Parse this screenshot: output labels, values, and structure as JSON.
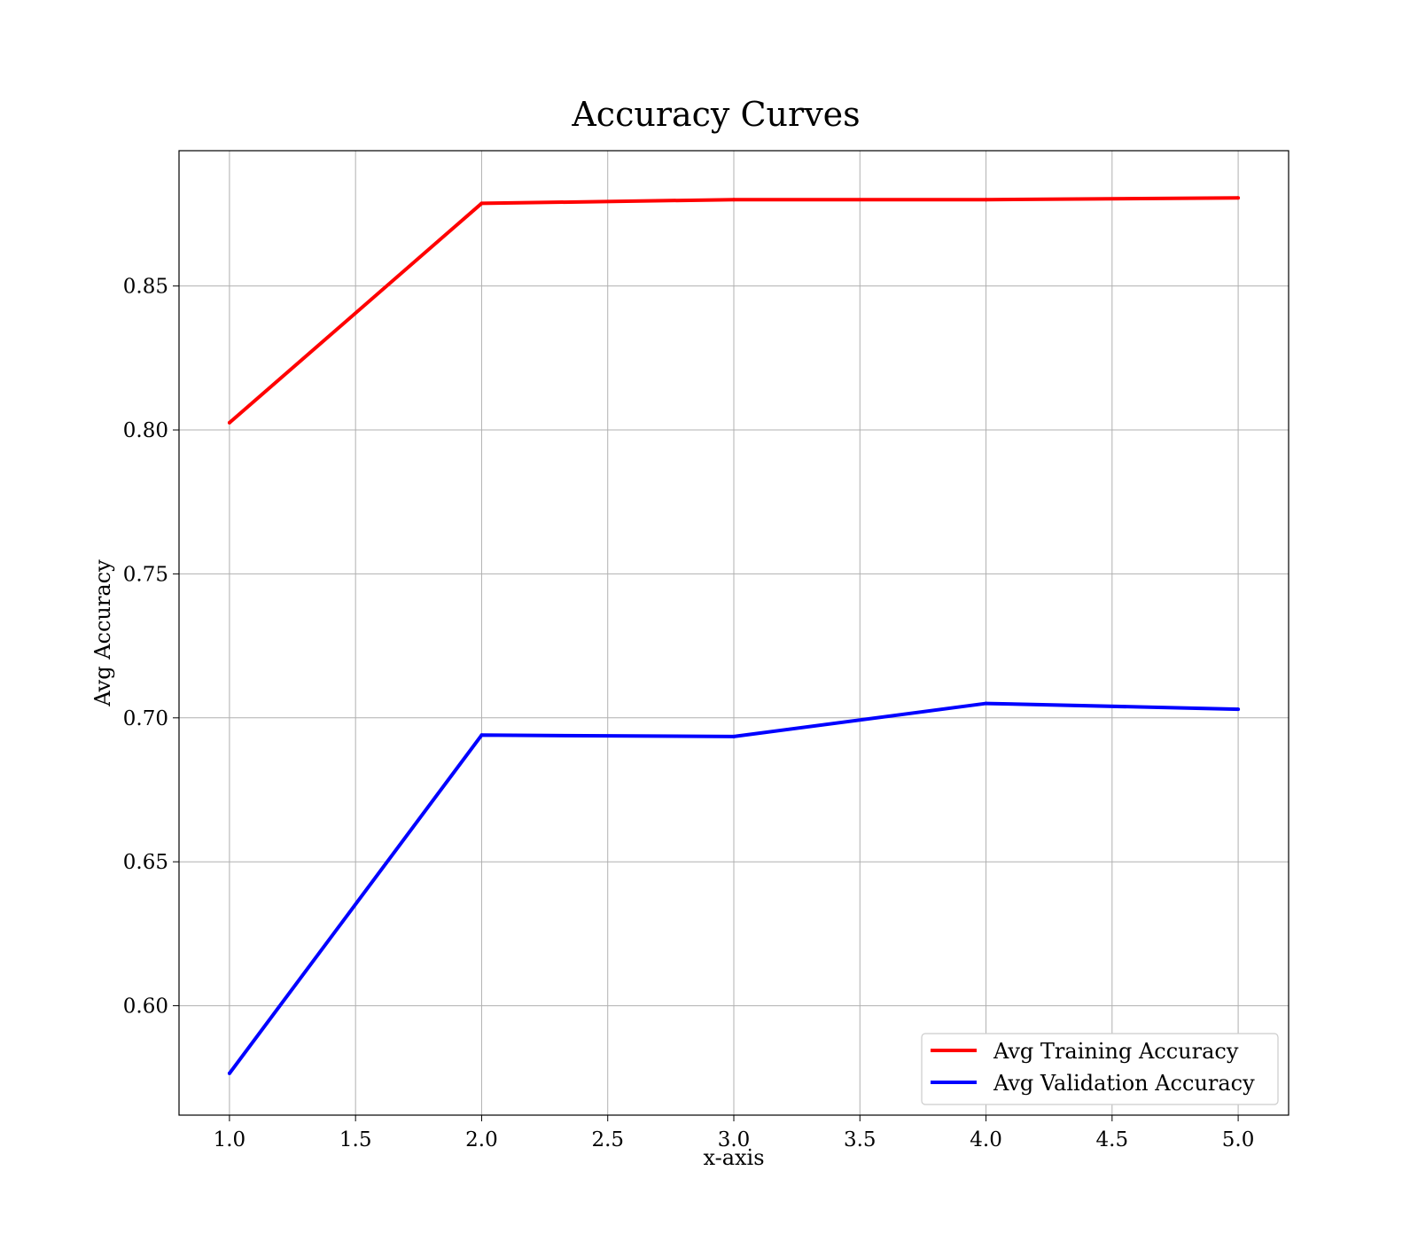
{
  "chart_data": {
    "type": "line",
    "title": "Accuracy Curves",
    "xlabel": "x-axis",
    "ylabel": "Avg Accuracy",
    "xlim": [
      0.8,
      5.2
    ],
    "ylim": [
      0.562,
      0.897
    ],
    "xticks": [
      "1.0",
      "1.5",
      "2.0",
      "2.5",
      "3.0",
      "3.5",
      "4.0",
      "4.5",
      "5.0"
    ],
    "yticks": [
      "0.60",
      "0.65",
      "0.70",
      "0.75",
      "0.80",
      "0.85"
    ],
    "grid": true,
    "legend_position": "lower-right",
    "x": [
      1,
      2,
      3,
      4,
      5
    ],
    "series": [
      {
        "name": "Avg Training Accuracy",
        "color": "#ff0000",
        "values": [
          0.8025,
          0.8787,
          0.88,
          0.88,
          0.8806
        ]
      },
      {
        "name": "Avg Validation Accuracy",
        "color": "#0000ff",
        "values": [
          0.5765,
          0.694,
          0.6935,
          0.705,
          0.703
        ]
      }
    ]
  }
}
